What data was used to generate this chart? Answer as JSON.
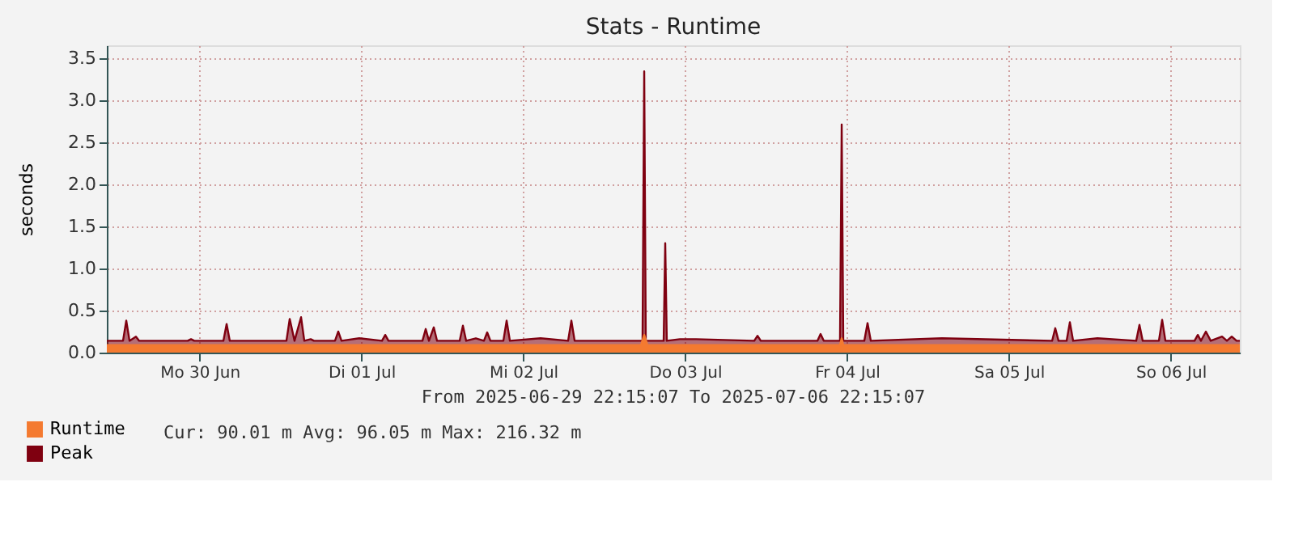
{
  "chart_data": {
    "type": "area",
    "title": "Stats - Runtime",
    "ylabel": "seconds",
    "ylim": [
      0,
      3.65
    ],
    "yticks": [
      {
        "value": 0,
        "label": "0.0"
      },
      {
        "value": 0.5,
        "label": "0.5"
      },
      {
        "value": 1,
        "label": "1.0"
      },
      {
        "value": 1.5,
        "label": "1.5"
      },
      {
        "value": 2,
        "label": "2.0"
      },
      {
        "value": 2.5,
        "label": "2.5"
      },
      {
        "value": 3,
        "label": "3.0"
      },
      {
        "value": 3.5,
        "label": "3.5"
      }
    ],
    "xlim": [
      "2025-06-29T22:15",
      "2025-07-06T22:15"
    ],
    "xticks": [
      {
        "value": "2025-06-30T12:00",
        "label": "Mo 30 Jun"
      },
      {
        "value": "2025-07-01T12:00",
        "label": "Di 01 Jul"
      },
      {
        "value": "2025-07-02T12:00",
        "label": "Mi 02 Jul"
      },
      {
        "value": "2025-07-03T12:00",
        "label": "Do 03 Jul"
      },
      {
        "value": "2025-07-04T12:00",
        "label": "Fr 04 Jul"
      },
      {
        "value": "2025-07-05T12:00",
        "label": "Sa 05 Jul"
      },
      {
        "value": "2025-07-06T12:00",
        "label": "So 06 Jul"
      }
    ],
    "grid": true,
    "legend": "bottom left",
    "annotations": [
      "From 2025-06-29 22:15:07 To 2025-07-06 22:15:07",
      "Cur:   90.01 m  Avg:   96.05 m  Max:  216.32 m"
    ],
    "series": [
      {
        "name": "Peak",
        "color": "#7f0010",
        "x": [
          "2025-06-29T22:15",
          "2025-06-30T00:39",
          "2025-06-30T01:08",
          "2025-06-30T01:37",
          "2025-06-30T02:34",
          "2025-06-30T03:03",
          "2025-06-30T10:15",
          "2025-06-30T10:44",
          "2025-06-30T11:13",
          "2025-06-30T15:32",
          "2025-06-30T16:01",
          "2025-06-30T16:29",
          "2025-07-01T00:53",
          "2025-07-01T01:22",
          "2025-07-01T02:05",
          "2025-07-01T03:03",
          "2025-07-01T03:32",
          "2025-07-01T04:29",
          "2025-07-01T04:58",
          "2025-07-01T08:05",
          "2025-07-01T08:34",
          "2025-07-01T09:03",
          "2025-07-01T11:41",
          "2025-07-01T15:03",
          "2025-07-01T15:32",
          "2025-07-01T16:01",
          "2025-07-01T21:03",
          "2025-07-01T21:32",
          "2025-07-01T22:01",
          "2025-07-01T22:44",
          "2025-07-01T23:13",
          "2025-07-02T02:34",
          "2025-07-02T03:03",
          "2025-07-02T03:32",
          "2025-07-02T04:58",
          "2025-07-02T06:10",
          "2025-07-02T06:39",
          "2025-07-02T07:08",
          "2025-07-02T09:03",
          "2025-07-02T09:32",
          "2025-07-02T10:01",
          "2025-07-02T14:34",
          "2025-07-02T18:39",
          "2025-07-02T19:08",
          "2025-07-02T19:37",
          "2025-07-03T05:41",
          "2025-07-03T05:56",
          "2025-07-03T06:10",
          "2025-07-03T08:49",
          "2025-07-03T09:03",
          "2025-07-03T09:17",
          "2025-07-03T11:13",
          "2025-07-03T13:37",
          "2025-07-03T22:15",
          "2025-07-03T22:44",
          "2025-07-03T23:13",
          "2025-07-04T07:37",
          "2025-07-04T08:05",
          "2025-07-04T08:34",
          "2025-07-04T10:58",
          "2025-07-04T11:13",
          "2025-07-04T11:27",
          "2025-07-04T14:34",
          "2025-07-04T15:03",
          "2025-07-04T15:32",
          "2025-07-05T02:05",
          "2025-07-05T18:25",
          "2025-07-05T18:53",
          "2025-07-05T19:22",
          "2025-07-05T20:34",
          "2025-07-05T21:03",
          "2025-07-05T21:32",
          "2025-07-06T01:08",
          "2025-07-06T06:53",
          "2025-07-06T07:22",
          "2025-07-06T07:51",
          "2025-07-06T10:15",
          "2025-07-06T10:44",
          "2025-07-06T11:13",
          "2025-07-06T15:32",
          "2025-07-06T16:01",
          "2025-07-06T16:29",
          "2025-07-06T17:13",
          "2025-07-06T17:56",
          "2025-07-06T19:37",
          "2025-07-06T20:20",
          "2025-07-06T21:03",
          "2025-07-06T21:46",
          "2025-07-06T22:15"
        ],
        "values": [
          0.14,
          0.14,
          0.38,
          0.14,
          0.19,
          0.14,
          0.14,
          0.16,
          0.14,
          0.14,
          0.34,
          0.14,
          0.14,
          0.4,
          0.14,
          0.42,
          0.14,
          0.16,
          0.14,
          0.14,
          0.25,
          0.14,
          0.17,
          0.14,
          0.21,
          0.14,
          0.14,
          0.28,
          0.14,
          0.3,
          0.14,
          0.14,
          0.32,
          0.14,
          0.17,
          0.14,
          0.24,
          0.14,
          0.14,
          0.38,
          0.14,
          0.17,
          0.14,
          0.38,
          0.14,
          0.14,
          3.34,
          0.14,
          0.14,
          1.3,
          0.14,
          0.16,
          0.16,
          0.14,
          0.2,
          0.14,
          0.14,
          0.22,
          0.14,
          0.14,
          2.71,
          0.14,
          0.14,
          0.35,
          0.14,
          0.17,
          0.14,
          0.29,
          0.14,
          0.14,
          0.36,
          0.14,
          0.17,
          0.14,
          0.33,
          0.14,
          0.14,
          0.39,
          0.14,
          0.14,
          0.21,
          0.14,
          0.25,
          0.14,
          0.19,
          0.14,
          0.19,
          0.14,
          0.14
        ]
      },
      {
        "name": "Runtime",
        "color": "#f47a30",
        "x": [
          "2025-06-29T22:15",
          "2025-07-03T05:27",
          "2025-07-03T05:56",
          "2025-07-03T06:25",
          "2025-07-04T10:58",
          "2025-07-04T11:13",
          "2025-07-04T11:27",
          "2025-07-06T22:15"
        ],
        "values": [
          0.09,
          0.09,
          0.21,
          0.09,
          0.09,
          0.17,
          0.09,
          0.09
        ]
      }
    ]
  }
}
